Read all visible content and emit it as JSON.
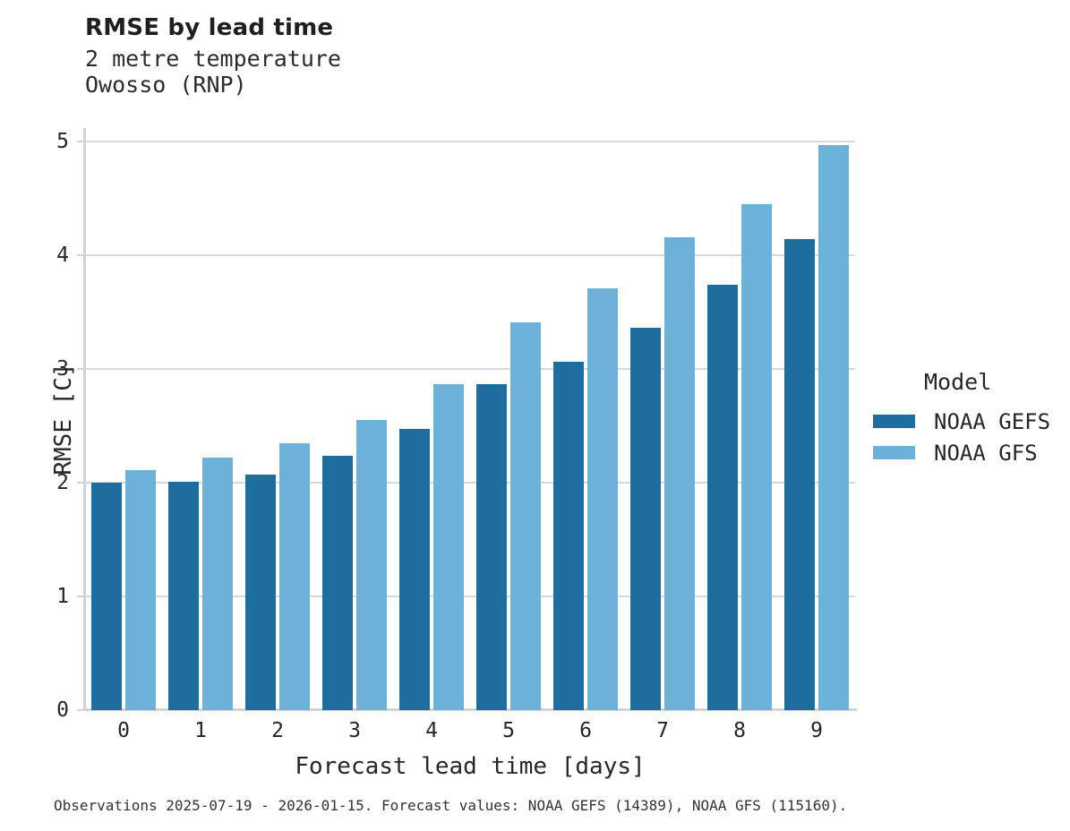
{
  "header": {
    "title": "RMSE by lead time",
    "subtitle_variable": "2 metre temperature",
    "subtitle_location": "Owosso (RNP)"
  },
  "legend": {
    "title": "Model",
    "entries": [
      {
        "label": "NOAA GEFS",
        "color": "#1d6e9e"
      },
      {
        "label": "NOAA GFS",
        "color": "#6cb1d8"
      }
    ]
  },
  "footer": {
    "caption": "Observations 2025-07-19 - 2026-01-15. Forecast values: NOAA GEFS (14389), NOAA GFS (115160)."
  },
  "chart_data": {
    "type": "bar",
    "title": "RMSE by lead time",
    "subtitle": [
      "2 metre temperature",
      "Owosso (RNP)"
    ],
    "categories": [
      "0",
      "1",
      "2",
      "3",
      "4",
      "5",
      "6",
      "7",
      "8",
      "9"
    ],
    "series": [
      {
        "name": "NOAA GEFS",
        "color": "#1d6e9e",
        "values": [
          2.0,
          2.01,
          2.07,
          2.24,
          2.47,
          2.87,
          3.06,
          3.36,
          3.74,
          4.14
        ]
      },
      {
        "name": "NOAA GFS",
        "color": "#6cb1d8",
        "values": [
          2.11,
          2.22,
          2.35,
          2.55,
          2.87,
          3.41,
          3.71,
          4.16,
          4.45,
          4.97
        ]
      }
    ],
    "xlabel": "Forecast lead time [days]",
    "ylabel": "RMSE [C]",
    "ylim": [
      0,
      5
    ],
    "yticks": [
      0,
      1,
      2,
      3,
      4,
      5
    ],
    "grid": true,
    "legend_title": "Model",
    "legend_position": "right"
  }
}
